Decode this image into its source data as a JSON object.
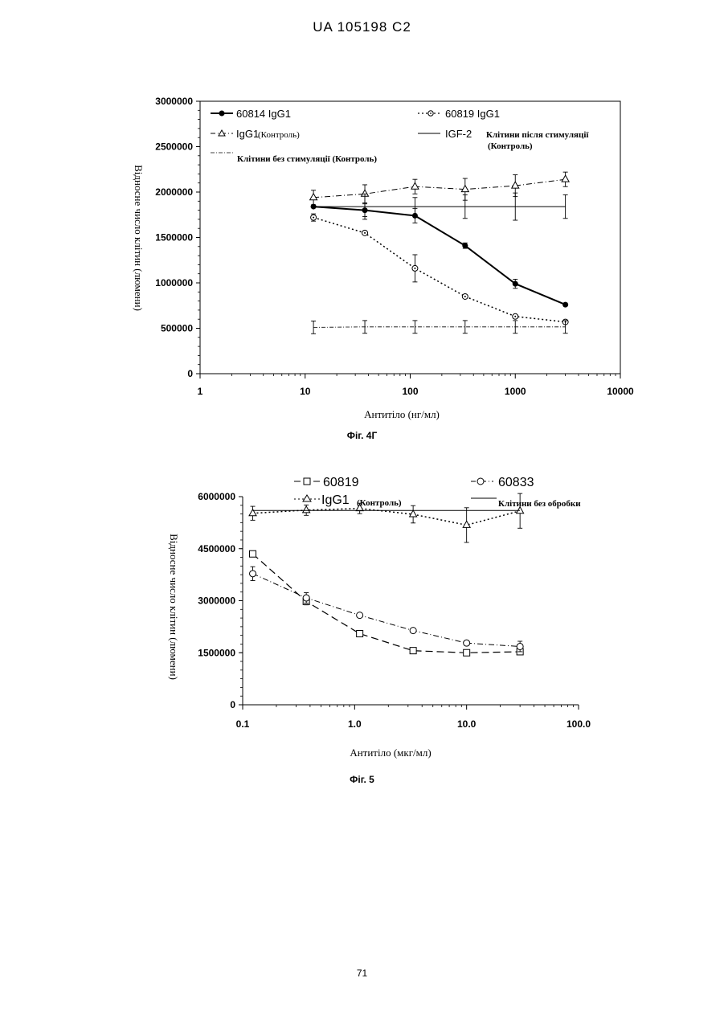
{
  "header": {
    "doc_id": "UA   105198   C2"
  },
  "figures": [
    {
      "caption": "Фіг. 4Г"
    },
    {
      "caption": "Фіг. 5"
    }
  ],
  "page_number": "71",
  "chart_data": [
    {
      "type": "line",
      "x_scale": "log",
      "xlabel": "Антитіло (нг/мл)",
      "ylabel": "Відносне число клітин (люмени)",
      "xlim": [
        1,
        10000
      ],
      "ylim": [
        0,
        3000000
      ],
      "x_ticks": [
        "1",
        "10",
        "100",
        "1000",
        "10000"
      ],
      "y_ticks": [
        "0",
        "500000",
        "1000000",
        "1500000",
        "2000000",
        "2500000",
        "3000000"
      ],
      "legend": {
        "placement": "top, inside plot",
        "entries": [
          {
            "label": "60814 IgG1",
            "sub": ""
          },
          {
            "label": "60819 IgG1",
            "sub": ""
          },
          {
            "label": "IgG1",
            "sub": "(Контроль)"
          },
          {
            "label": "IGF-2",
            "sub": "Клітини після стимуляції",
            "sub2": "(Контроль)"
          },
          {
            "label": "",
            "sub": "Клітини без стимуляції (Контроль)"
          }
        ]
      },
      "series": [
        {
          "name": "60814 IgG1",
          "marker": "filled-circle",
          "line": "solid-thick",
          "x": [
            12,
            37,
            111,
            333,
            1000,
            3000
          ],
          "y": [
            1840000,
            1800000,
            1740000,
            1410000,
            990000,
            760000
          ],
          "err": [
            0,
            70000,
            80000,
            30000,
            50000,
            0
          ]
        },
        {
          "name": "60819 IgG1",
          "marker": "circle-dot",
          "line": "dotted",
          "x": [
            12,
            37,
            111,
            333,
            1000,
            3000
          ],
          "y": [
            1720000,
            1550000,
            1160000,
            850000,
            630000,
            570000
          ],
          "err": [
            40000,
            0,
            150000,
            0,
            0,
            0
          ]
        },
        {
          "name": "IgG1",
          "marker": "triangle",
          "line": "dash-dot",
          "x": [
            12,
            37,
            111,
            333,
            1000,
            3000
          ],
          "y": [
            1940000,
            1980000,
            2060000,
            2030000,
            2070000,
            2140000
          ],
          "err": [
            80000,
            100000,
            80000,
            120000,
            120000,
            80000
          ]
        },
        {
          "name": "IGF-2",
          "marker": "none",
          "line": "solid-thin",
          "x": [
            12,
            37,
            111,
            333,
            1000,
            3000
          ],
          "y": [
            1840000,
            1840000,
            1840000,
            1840000,
            1840000,
            1840000
          ],
          "err": [
            0,
            140000,
            100000,
            130000,
            150000,
            130000
          ]
        },
        {
          "name": "Клітини без стимуляції",
          "marker": "none",
          "line": "dash-dot-thin",
          "x": [
            12,
            37,
            111,
            333,
            1000,
            3000
          ],
          "y": [
            510000,
            515000,
            515000,
            515000,
            515000,
            515000
          ],
          "err": [
            70000,
            70000,
            70000,
            70000,
            70000,
            70000
          ]
        }
      ]
    },
    {
      "type": "line",
      "x_scale": "log",
      "xlabel": "Антитіло (мкг/мл)",
      "ylabel": "Відносне число клітин (люмени)",
      "xlim": [
        0.1,
        100
      ],
      "ylim": [
        0,
        6000000
      ],
      "x_ticks": [
        "0.1",
        "1.0",
        "10.0",
        "100.0"
      ],
      "y_ticks": [
        "0",
        "1500000",
        "3000000",
        "4500000",
        "6000000"
      ],
      "legend": {
        "placement": "above plot",
        "entries": [
          {
            "label": "60819",
            "sub": ""
          },
          {
            "label": "60833",
            "sub": ""
          },
          {
            "label": "IgG1",
            "sub": "(Контроль)"
          },
          {
            "label": "",
            "sub": "Клітини без обробки"
          }
        ]
      },
      "series": [
        {
          "name": "60819",
          "marker": "square",
          "line": "dashed",
          "x": [
            0.123,
            0.37,
            1.11,
            3.33,
            10,
            30
          ],
          "y": [
            4350000,
            2980000,
            2050000,
            1560000,
            1500000,
            1530000
          ],
          "err": [
            0,
            100000,
            0,
            0,
            0,
            0
          ]
        },
        {
          "name": "60833",
          "marker": "circle",
          "line": "dash-dot",
          "x": [
            0.123,
            0.37,
            1.11,
            3.33,
            10,
            30
          ],
          "y": [
            3780000,
            3080000,
            2580000,
            2140000,
            1780000,
            1680000
          ],
          "err": [
            200000,
            150000,
            0,
            0,
            0,
            150000
          ]
        },
        {
          "name": "IgG1",
          "marker": "triangle",
          "line": "dotted",
          "x": [
            0.123,
            0.37,
            1.11,
            3.33,
            10,
            30
          ],
          "y": [
            5520000,
            5610000,
            5660000,
            5490000,
            5180000,
            5590000
          ],
          "err": [
            200000,
            150000,
            150000,
            250000,
            500000,
            500000
          ]
        },
        {
          "name": "Клітини без обробки",
          "marker": "none",
          "line": "solid-thin",
          "x": [
            0.123,
            0.37,
            1.11,
            3.33,
            10,
            30
          ],
          "y": [
            5600000,
            5600000,
            5600000,
            5600000,
            5600000,
            5600000
          ],
          "err": [
            0,
            0,
            0,
            0,
            0,
            0
          ]
        }
      ]
    }
  ]
}
